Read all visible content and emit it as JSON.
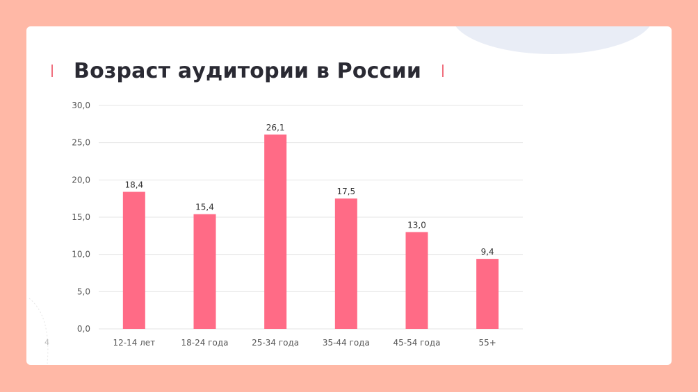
{
  "slide": {
    "title": "Возраст аудитории в России",
    "page_number": "4"
  },
  "colors": {
    "background": "#ffb8a6",
    "bar": "#ff6b86",
    "accent_mark": "#f0707e",
    "grid": "#e4e4e4"
  },
  "chart_data": {
    "type": "bar",
    "title": "",
    "xlabel": "",
    "ylabel": "",
    "ylim": [
      0,
      30
    ],
    "yticks": [
      "0,0",
      "5,0",
      "10,0",
      "15,0",
      "20,0",
      "25,0",
      "30,0"
    ],
    "grid": true,
    "categories": [
      "12-14 лет",
      "18-24 года",
      "25-34 года",
      "35-44 года",
      "45-54 года",
      "55+"
    ],
    "values": [
      18.4,
      15.4,
      26.1,
      17.5,
      13.0,
      9.4
    ],
    "value_labels": [
      "18,4",
      "15,4",
      "26,1",
      "17,5",
      "13,0",
      "9,4"
    ]
  }
}
